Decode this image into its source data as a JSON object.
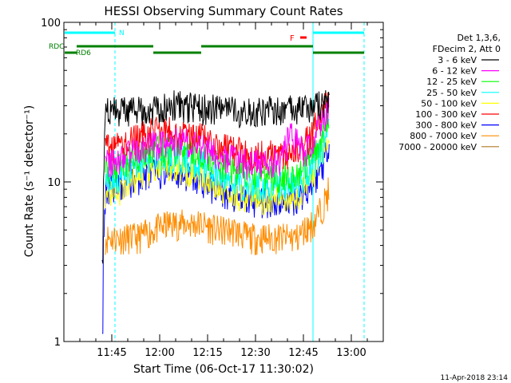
{
  "chart_data": {
    "type": "line",
    "title": "HESSI Observing Summary Count Rates",
    "xlabel": "Start Time (06-Oct-17 11:30:02)",
    "ylabel": "Count Rate (s⁻¹ detector⁻¹)",
    "yscale": "log",
    "ylim": [
      1,
      100
    ],
    "xlim": [
      "11:30",
      "13:10"
    ],
    "x_ticks": [
      "11:45",
      "12:00",
      "12:15",
      "12:30",
      "12:45",
      "13:00"
    ],
    "y_ticks": [
      "1",
      "10",
      "100"
    ],
    "grid": false,
    "footer": "11-Apr-2018 23:14",
    "legend": {
      "placement": "right",
      "header": [
        "Det 1,3,6,",
        "FDecim 2, Att 0"
      ],
      "entries": [
        {
          "label": "3 - 6 keV",
          "color": "#000000"
        },
        {
          "label": "6 - 12 keV",
          "color": "#ff00ff"
        },
        {
          "label": "12 - 25 keV",
          "color": "#00ff00"
        },
        {
          "label": "25 - 50 keV",
          "color": "#00ffff"
        },
        {
          "label": "50 - 100 keV",
          "color": "#ffff00"
        },
        {
          "label": "100 - 300 keV",
          "color": "#ff0000"
        },
        {
          "label": "300 - 800 keV",
          "color": "#0000ff"
        },
        {
          "label": "800 - 7000 keV",
          "color": "#ff8c00"
        },
        {
          "label": "7000 - 20000 keV",
          "color": "#b07820"
        }
      ]
    },
    "flag_labels": {
      "n": "N",
      "rdc": "RDC",
      "rd6": "RD6",
      "f": "F"
    },
    "flag_colors": {
      "n": "#00ffff",
      "rdc": "#008000",
      "rd6": "#008000",
      "f": "#ff0000"
    },
    "vlines": [
      {
        "time": "11:46",
        "style": "dashed",
        "color": "#00ffff"
      },
      {
        "time": "12:48",
        "style": "solid",
        "color": "#00ffff"
      },
      {
        "time": "13:04",
        "style": "dashed",
        "color": "#00ffff"
      }
    ],
    "flag_bars": [
      {
        "flag": "n",
        "start": "11:30",
        "end": "11:46"
      },
      {
        "flag": "n",
        "start": "12:48",
        "end": "13:04"
      },
      {
        "flag": "rdc",
        "start": "11:34",
        "end": "11:58"
      },
      {
        "flag": "rdc",
        "start": "12:13",
        "end": "12:48"
      },
      {
        "flag": "rd6",
        "start": "11:30",
        "end": "11:34"
      },
      {
        "flag": "rd6",
        "start": "11:58",
        "end": "12:13"
      },
      {
        "flag": "rd6",
        "start": "12:48",
        "end": "13:04"
      },
      {
        "flag": "f",
        "start": "12:44",
        "end": "12:46"
      }
    ],
    "series_time_range": [
      "11:42",
      "12:53"
    ],
    "series": [
      {
        "name": "3 - 6 keV",
        "color": "#000000",
        "x": [
          "11:42",
          "11:43",
          "11:48",
          "11:53",
          "11:58",
          "12:03",
          "12:08",
          "12:13",
          "12:18",
          "12:23",
          "12:28",
          "12:33",
          "12:38",
          "12:43",
          "12:48",
          "12:51",
          "12:53"
        ],
        "y": [
          3,
          28,
          28,
          28,
          29,
          31,
          30,
          29,
          29,
          28,
          28,
          28,
          28,
          29,
          30,
          31,
          33
        ]
      },
      {
        "name": "6 - 12 keV",
        "color": "#ff00ff",
        "x": [
          "11:43",
          "11:48",
          "11:53",
          "11:58",
          "12:03",
          "12:08",
          "12:13",
          "12:18",
          "12:23",
          "12:28",
          "12:33",
          "12:38",
          "12:41",
          "12:43",
          "12:45",
          "12:48",
          "12:51",
          "12:53"
        ],
        "y": [
          13,
          14,
          16,
          17,
          18,
          18,
          17,
          15,
          14,
          13,
          13,
          14,
          20,
          18,
          15,
          18,
          24,
          32
        ]
      },
      {
        "name": "12 - 25 keV",
        "color": "#00ff00",
        "x": [
          "11:43",
          "11:48",
          "11:53",
          "11:58",
          "12:03",
          "12:08",
          "12:13",
          "12:18",
          "12:23",
          "12:28",
          "12:33",
          "12:38",
          "12:43",
          "12:45",
          "12:48",
          "12:51",
          "12:53"
        ],
        "y": [
          12,
          13,
          15,
          16,
          16,
          16,
          15,
          13,
          12,
          11,
          11,
          11,
          11,
          12,
          15,
          20,
          28
        ]
      },
      {
        "name": "25 - 50 keV",
        "color": "#00ffff",
        "x": [
          "11:43",
          "11:48",
          "11:53",
          "11:58",
          "12:03",
          "12:08",
          "12:13",
          "12:18",
          "12:23",
          "12:28",
          "12:33",
          "12:38",
          "12:43",
          "12:45",
          "12:48",
          "12:51",
          "12:53"
        ],
        "y": [
          10,
          11,
          13,
          14,
          14,
          14,
          13,
          11,
          10,
          9.5,
          9.5,
          9.5,
          10,
          11,
          13,
          17,
          24
        ]
      },
      {
        "name": "50 - 100 keV",
        "color": "#ffff00",
        "x": [
          "11:43",
          "11:48",
          "11:53",
          "11:58",
          "12:03",
          "12:08",
          "12:13",
          "12:18",
          "12:23",
          "12:28",
          "12:33",
          "12:38",
          "12:43",
          "12:45",
          "12:48",
          "12:51",
          "12:53"
        ],
        "y": [
          8.5,
          9,
          11,
          12,
          12,
          12,
          11,
          9.5,
          8.5,
          8,
          8,
          8,
          8.5,
          9,
          11,
          15,
          21
        ]
      },
      {
        "name": "100 - 300 keV",
        "color": "#ff0000",
        "x": [
          "11:43",
          "11:48",
          "11:53",
          "11:58",
          "12:03",
          "12:08",
          "12:13",
          "12:18",
          "12:23",
          "12:28",
          "12:33",
          "12:38",
          "12:43",
          "12:45",
          "12:48",
          "12:51",
          "12:53"
        ],
        "y": [
          16,
          17,
          19,
          21,
          21,
          20,
          19,
          17,
          16,
          15,
          15,
          15,
          16,
          17,
          21,
          28,
          36
        ]
      },
      {
        "name": "300 - 800 keV",
        "color": "#0000ff",
        "x": [
          "11:42",
          "11:43",
          "11:48",
          "11:53",
          "11:58",
          "12:03",
          "12:08",
          "12:13",
          "12:18",
          "12:23",
          "12:28",
          "12:33",
          "12:38",
          "12:43",
          "12:45",
          "12:48",
          "12:51",
          "12:53"
        ],
        "y": [
          1,
          9,
          9.5,
          10.5,
          11.5,
          11.5,
          11,
          10,
          9,
          8,
          7.5,
          7.5,
          7.5,
          8,
          8.5,
          10,
          13,
          18
        ]
      },
      {
        "name": "800 - 7000 keV",
        "color": "#ff8c00",
        "x": [
          "11:43",
          "11:48",
          "11:53",
          "11:58",
          "12:03",
          "12:08",
          "12:13",
          "12:18",
          "12:23",
          "12:28",
          "12:33",
          "12:38",
          "12:43",
          "12:45",
          "12:48",
          "12:51",
          "12:53"
        ],
        "y": [
          4.5,
          4.5,
          4.5,
          5,
          5.5,
          5.5,
          5.5,
          5,
          5,
          4.5,
          4.5,
          4.5,
          4.5,
          5,
          5.5,
          7,
          9
        ]
      },
      {
        "name": "7000 - 20000 keV",
        "color": "#b07820",
        "x": [],
        "y": []
      }
    ]
  }
}
